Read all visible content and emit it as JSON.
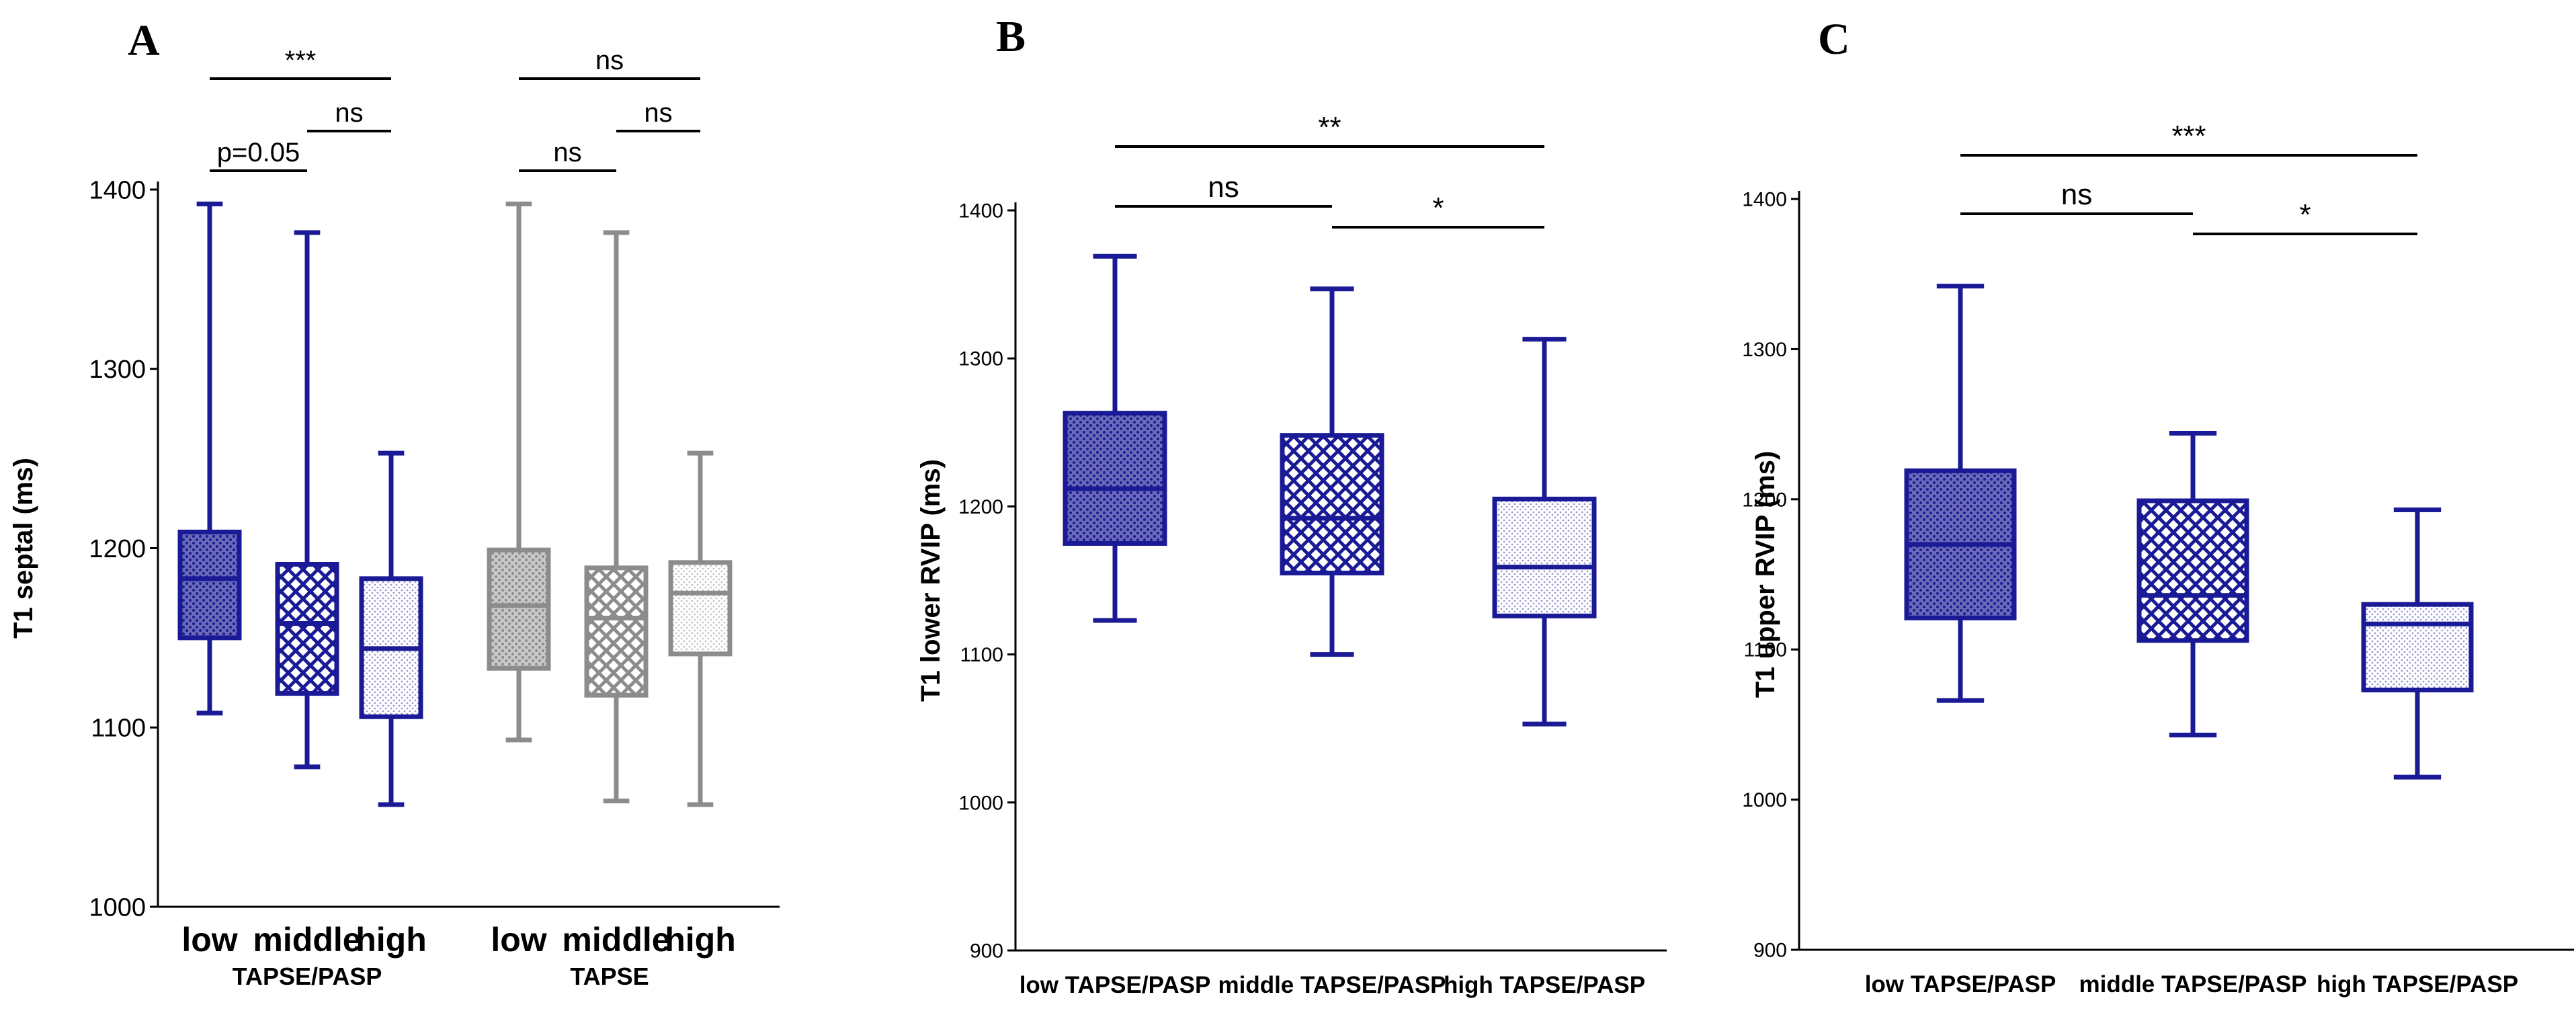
{
  "figure": {
    "colors": {
      "primary": "#1a1a96",
      "secondary": "#8c8c8c",
      "axis": "#000000"
    }
  },
  "chart_data": [
    {
      "type": "box",
      "panel": "A",
      "ylabel": "T1 septal (ms)",
      "ylim": [
        1000,
        1400
      ],
      "yticks": [
        1000,
        1100,
        1200,
        1300,
        1400
      ],
      "group_labels": [
        "TAPSE/PASP",
        "TAPSE"
      ],
      "boxes": [
        {
          "label": "low",
          "group": "TAPSE/PASP",
          "color": "primary",
          "pattern": "dots",
          "min": 1108,
          "q1": 1150,
          "median": 1183,
          "q3": 1209,
          "max": 1392
        },
        {
          "label": "middle",
          "group": "TAPSE/PASP",
          "color": "primary",
          "pattern": "cross",
          "min": 1078,
          "q1": 1119,
          "median": 1158,
          "q3": 1191,
          "max": 1376
        },
        {
          "label": "high",
          "group": "TAPSE/PASP",
          "color": "primary",
          "pattern": "fine",
          "min": 1057,
          "q1": 1106,
          "median": 1144,
          "q3": 1183,
          "max": 1253
        },
        {
          "label": "low",
          "group": "TAPSE",
          "color": "secondary",
          "pattern": "dots",
          "min": 1093,
          "q1": 1133,
          "median": 1168,
          "q3": 1199,
          "max": 1392
        },
        {
          "label": "middle",
          "group": "TAPSE",
          "color": "secondary",
          "pattern": "cross",
          "min": 1059,
          "q1": 1118,
          "median": 1161,
          "q3": 1189,
          "max": 1376
        },
        {
          "label": "high",
          "group": "TAPSE",
          "color": "secondary",
          "pattern": "fine",
          "min": 1057,
          "q1": 1141,
          "median": 1175,
          "q3": 1192,
          "max": 1253
        }
      ],
      "comparisons": [
        {
          "from": 0,
          "to": 2,
          "label": "***",
          "tier": 3
        },
        {
          "from": 1,
          "to": 2,
          "label": "ns",
          "tier": 2
        },
        {
          "from": 0,
          "to": 1,
          "label": "p=0.05",
          "tier": 1
        },
        {
          "from": 3,
          "to": 5,
          "label": "ns",
          "tier": 3
        },
        {
          "from": 4,
          "to": 5,
          "label": "ns",
          "tier": 2
        },
        {
          "from": 3,
          "to": 4,
          "label": "ns",
          "tier": 1
        }
      ]
    },
    {
      "type": "box",
      "panel": "B",
      "ylabel": "T1 lower RVIP (ms)",
      "ylim": [
        900,
        1400
      ],
      "yticks": [
        900,
        1000,
        1100,
        1200,
        1300,
        1400
      ],
      "boxes": [
        {
          "label": "low TAPSE/PASP",
          "color": "primary",
          "pattern": "dots",
          "min": 1123,
          "q1": 1175,
          "median": 1212,
          "q3": 1263,
          "max": 1369
        },
        {
          "label": "middle TAPSE/PASP",
          "color": "primary",
          "pattern": "cross",
          "min": 1100,
          "q1": 1155,
          "median": 1192,
          "q3": 1248,
          "max": 1347
        },
        {
          "label": "high TAPSE/PASP",
          "color": "primary",
          "pattern": "fine",
          "min": 1053,
          "q1": 1126,
          "median": 1159,
          "q3": 1205,
          "max": 1313
        }
      ],
      "comparisons": [
        {
          "from": 0,
          "to": 2,
          "label": "**",
          "tier": 2
        },
        {
          "from": 0,
          "to": 1,
          "label": "ns",
          "tier": 1
        },
        {
          "from": 1,
          "to": 2,
          "label": "*",
          "tier": 0
        }
      ]
    },
    {
      "type": "box",
      "panel": "C",
      "ylabel": "T1 upper RVIP (ms)",
      "ylim": [
        900,
        1400
      ],
      "yticks": [
        900,
        1000,
        1100,
        1200,
        1300,
        1400
      ],
      "boxes": [
        {
          "label": "low TAPSE/PASP",
          "color": "primary",
          "pattern": "dots",
          "min": 1066,
          "q1": 1121,
          "median": 1170,
          "q3": 1219,
          "max": 1342
        },
        {
          "label": "middle TAPSE/PASP",
          "color": "primary",
          "pattern": "cross",
          "min": 1043,
          "q1": 1106,
          "median": 1136,
          "q3": 1199,
          "max": 1244
        },
        {
          "label": "high TAPSE/PASP",
          "color": "primary",
          "pattern": "fine",
          "min": 1015,
          "q1": 1073,
          "median": 1117,
          "q3": 1130,
          "max": 1193
        }
      ],
      "comparisons": [
        {
          "from": 0,
          "to": 2,
          "label": "***",
          "tier": 2
        },
        {
          "from": 0,
          "to": 1,
          "label": "ns",
          "tier": 1
        },
        {
          "from": 1,
          "to": 2,
          "label": "*",
          "tier": 0
        }
      ]
    }
  ]
}
